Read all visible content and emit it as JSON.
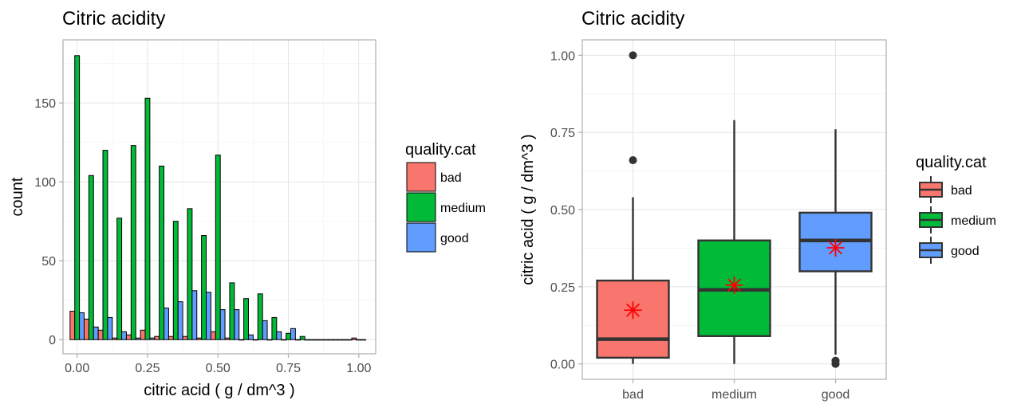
{
  "chart_data": [
    {
      "type": "bar",
      "title": "Citric acidity",
      "xlabel": "citric acid ( g / dm^3 )",
      "ylabel": "count",
      "xlim": [
        -0.05,
        1.06
      ],
      "ylim": [
        -9,
        190
      ],
      "x_ticks": [
        0,
        0.25,
        0.5,
        0.75,
        1.0
      ],
      "x_tick_labels": [
        "0.00",
        "0.25",
        "0.50",
        "0.75",
        "1.00"
      ],
      "y_ticks": [
        0,
        50,
        100,
        150
      ],
      "y_tick_labels": [
        "0",
        "50",
        "100",
        "150"
      ],
      "bin_centers": [
        0.0,
        0.05,
        0.1,
        0.15,
        0.2,
        0.25,
        0.3,
        0.35,
        0.4,
        0.45,
        0.5,
        0.55,
        0.6,
        0.65,
        0.7,
        0.75,
        0.8,
        0.85,
        0.9,
        0.95,
        1.0
      ],
      "series": [
        {
          "name": "bad",
          "color": "#F8766D",
          "values": [
            18,
            13,
            6,
            1,
            3,
            6,
            2,
            2,
            2,
            1,
            5,
            1,
            0,
            0,
            0,
            0,
            0,
            0,
            0,
            0,
            1
          ]
        },
        {
          "name": "medium",
          "color": "#00BA38",
          "values": [
            180,
            104,
            120,
            77,
            123,
            153,
            110,
            75,
            83,
            66,
            117,
            36,
            26,
            29,
            14,
            4,
            2,
            0,
            0,
            0,
            0
          ]
        },
        {
          "name": "good",
          "color": "#619CFF",
          "values": [
            17,
            8,
            14,
            5,
            1,
            1,
            20,
            24,
            31,
            30,
            19,
            19,
            3,
            12,
            5,
            7,
            0,
            0,
            0,
            0,
            0
          ]
        }
      ],
      "grid": true,
      "legend": {
        "title": "quality.cat",
        "position": "right",
        "labels": [
          "bad",
          "medium",
          "good"
        ]
      }
    },
    {
      "type": "box",
      "title": "Citric acidity",
      "xlabel": "",
      "ylabel": "citric acid ( g / dm^3 )",
      "ylim": [
        -0.05,
        1.05
      ],
      "y_ticks": [
        0,
        0.25,
        0.5,
        0.75,
        1.0
      ],
      "y_tick_labels": [
        "0.00",
        "0.25",
        "0.50",
        "0.75",
        "1.00"
      ],
      "categories": [
        "bad",
        "medium",
        "good"
      ],
      "boxes": [
        {
          "name": "bad",
          "color": "#F8766D",
          "min": 0.0,
          "q1": 0.02,
          "median": 0.08,
          "q3": 0.27,
          "max": 0.54,
          "mean": 0.174,
          "outliers": [
            0.66,
            1.0
          ]
        },
        {
          "name": "medium",
          "color": "#00BA38",
          "min": 0.0,
          "q1": 0.09,
          "median": 0.24,
          "q3": 0.4,
          "max": 0.79,
          "mean": 0.255,
          "outliers": []
        },
        {
          "name": "good",
          "color": "#619CFF",
          "min": 0.03,
          "q1": 0.3,
          "median": 0.4,
          "q3": 0.49,
          "max": 0.76,
          "mean": 0.376,
          "outliers": [
            0.0,
            0.0,
            0.01,
            0.01
          ]
        }
      ],
      "mean_marker": {
        "shape": "asterisk",
        "color": "#FF0000"
      },
      "grid": true,
      "legend": {
        "title": "quality.cat",
        "position": "right",
        "labels": [
          "bad",
          "medium",
          "good"
        ]
      }
    }
  ]
}
